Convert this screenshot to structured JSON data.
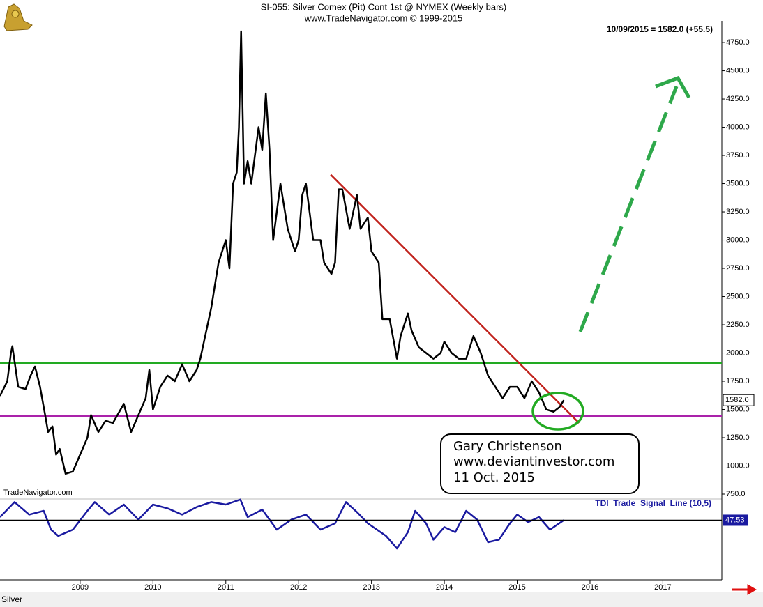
{
  "chart_data": [
    {
      "type": "line",
      "title": "SI-055:  Silver Comex (Pit) Cont 1st @ NYMEX  (Weekly bars)",
      "subtitle": "www.TradeNavigator.com © 1999-2015",
      "last_quote": "10/09/2015 = 1582.0 (+55.5)",
      "last_price_label": "1582.0",
      "source": "TradeNavigator.com",
      "instrument": "Silver",
      "annotation": [
        "Gary Christenson",
        "www.deviantinvestor.com",
        "11 Oct. 2015"
      ],
      "xlim": [
        2007.9,
        2017.81
      ],
      "xticks": [
        2009,
        2010,
        2011,
        2012,
        2013,
        2014,
        2015,
        2016,
        2017
      ],
      "ylim": [
        750,
        4880
      ],
      "yticks": [
        {
          "value": 750,
          "label": "750.0"
        },
        {
          "value": 1000,
          "label": "1000.0"
        },
        {
          "value": 1250,
          "label": "1250.0"
        },
        {
          "value": 1500,
          "label": "1500.0"
        },
        {
          "value": 1750,
          "label": "1750.0"
        },
        {
          "value": 2000,
          "label": "2000.0"
        },
        {
          "value": 2250,
          "label": "2250.0"
        },
        {
          "value": 2500,
          "label": "2500.0"
        },
        {
          "value": 2750,
          "label": "2750.0"
        },
        {
          "value": 3000,
          "label": "3000.0"
        },
        {
          "value": 3250,
          "label": "3250.0"
        },
        {
          "value": 3500,
          "label": "3500.0"
        },
        {
          "value": 3750,
          "label": "3750.0"
        },
        {
          "value": 4000,
          "label": "4000.0"
        },
        {
          "value": 4250,
          "label": "4250.0"
        },
        {
          "value": 4500,
          "label": "4500.0"
        },
        {
          "value": 4750,
          "label": "4750.0"
        }
      ],
      "x": [
        2007.9,
        2008.0,
        2008.05,
        2008.07,
        2008.15,
        2008.25,
        2008.32,
        2008.38,
        2008.45,
        2008.52,
        2008.56,
        2008.62,
        2008.67,
        2008.72,
        2008.8,
        2008.9,
        2009.0,
        2009.1,
        2009.15,
        2009.25,
        2009.35,
        2009.45,
        2009.6,
        2009.7,
        2009.8,
        2009.9,
        2009.95,
        2010.0,
        2010.1,
        2010.2,
        2010.3,
        2010.4,
        2010.5,
        2010.6,
        2010.65,
        2010.8,
        2010.9,
        2011.0,
        2011.05,
        2011.1,
        2011.15,
        2011.18,
        2011.21,
        2011.25,
        2011.3,
        2011.35,
        2011.45,
        2011.5,
        2011.55,
        2011.6,
        2011.65,
        2011.75,
        2011.85,
        2011.95,
        2012.0,
        2012.05,
        2012.1,
        2012.2,
        2012.3,
        2012.35,
        2012.45,
        2012.5,
        2012.55,
        2012.6,
        2012.7,
        2012.8,
        2012.85,
        2012.95,
        2013.0,
        2013.1,
        2013.15,
        2013.25,
        2013.35,
        2013.4,
        2013.5,
        2013.55,
        2013.65,
        2013.75,
        2013.85,
        2013.95,
        2014.0,
        2014.1,
        2014.2,
        2014.3,
        2014.4,
        2014.5,
        2014.6,
        2014.7,
        2014.8,
        2014.9,
        2015.0,
        2015.1,
        2015.2,
        2015.3,
        2015.4,
        2015.5,
        2015.58,
        2015.64
      ],
      "series": [
        {
          "name": "Silver",
          "color": "#000000",
          "values": [
            1620,
            1750,
            2000,
            2060,
            1700,
            1680,
            1800,
            1880,
            1700,
            1450,
            1300,
            1350,
            1100,
            1150,
            930,
            950,
            1100,
            1250,
            1450,
            1300,
            1400,
            1380,
            1550,
            1300,
            1450,
            1600,
            1850,
            1500,
            1700,
            1800,
            1750,
            1900,
            1750,
            1850,
            1950,
            2400,
            2800,
            3000,
            2750,
            3500,
            3600,
            4000,
            4850,
            3500,
            3700,
            3500,
            4000,
            3800,
            4300,
            3800,
            3000,
            3500,
            3100,
            2900,
            3000,
            3400,
            3500,
            3000,
            3000,
            2800,
            2700,
            2800,
            3450,
            3450,
            3100,
            3400,
            3100,
            3200,
            2900,
            2800,
            2300,
            2300,
            1950,
            2150,
            2350,
            2200,
            2050,
            2000,
            1950,
            2000,
            2100,
            2000,
            1950,
            1950,
            2150,
            2000,
            1800,
            1700,
            1600,
            1700,
            1700,
            1600,
            1750,
            1650,
            1500,
            1480,
            1520,
            1582
          ]
        }
      ],
      "levels": [
        {
          "value": 1910,
          "color": "#22aa22"
        },
        {
          "value": 1440,
          "color": "#aa22aa"
        }
      ],
      "trendline": {
        "x": [
          2012.44,
          2015.85
        ],
        "y": [
          3580,
          1380
        ],
        "color": "#c0201a"
      }
    },
    {
      "type": "line",
      "xlim": [
        2007.9,
        2017.81
      ],
      "ylim": [
        0,
        65
      ],
      "x": [
        2007.9,
        2008.1,
        2008.3,
        2008.5,
        2008.6,
        2008.7,
        2008.9,
        2009.1,
        2009.2,
        2009.4,
        2009.6,
        2009.8,
        2010.0,
        2010.2,
        2010.4,
        2010.6,
        2010.8,
        2011.0,
        2011.2,
        2011.3,
        2011.5,
        2011.7,
        2011.9,
        2012.1,
        2012.3,
        2012.5,
        2012.65,
        2012.8,
        2012.95,
        2013.2,
        2013.35,
        2013.5,
        2013.6,
        2013.75,
        2013.85,
        2014.0,
        2014.15,
        2014.3,
        2014.45,
        2014.6,
        2014.75,
        2014.9,
        2015.0,
        2015.15,
        2015.3,
        2015.45,
        2015.64
      ],
      "series": [
        {
          "name": "TDI_Trade_Signal_Line (10,5)",
          "color": "#1a1aa0",
          "values": [
            50,
            62,
            52,
            55,
            40,
            35,
            40,
            55,
            62,
            52,
            60,
            48,
            60,
            57,
            52,
            58,
            62,
            60,
            64,
            50,
            56,
            40,
            48,
            52,
            40,
            45,
            62,
            54,
            45,
            35,
            25,
            38,
            55,
            45,
            32,
            42,
            38,
            55,
            48,
            30,
            32,
            45,
            52,
            46,
            50,
            40,
            47.53
          ]
        }
      ]
    }
  ]
}
